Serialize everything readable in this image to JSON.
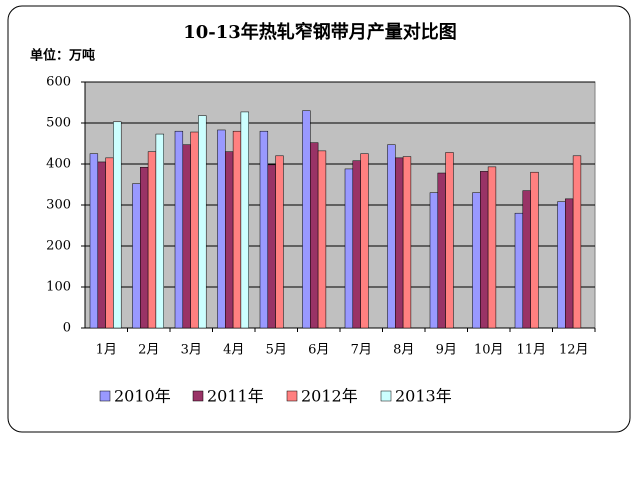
{
  "chart_data": {
    "type": "bar",
    "title": "10-13年热轧窄钢带月产量对比图",
    "unit_label": "单位：万吨",
    "categories": [
      "1月",
      "2月",
      "3月",
      "4月",
      "5月",
      "6月",
      "7月",
      "8月",
      "9月",
      "10月",
      "11月",
      "12月"
    ],
    "series": [
      {
        "name": "2010年",
        "color": "#9999ff",
        "values": [
          425,
          352,
          480,
          483,
          480,
          530,
          388,
          447,
          330,
          330,
          280,
          308
        ]
      },
      {
        "name": "2011年",
        "color": "#993366",
        "values": [
          405,
          392,
          447,
          430,
          398,
          452,
          408,
          415,
          378,
          382,
          335,
          315
        ]
      },
      {
        "name": "2012年",
        "color": "#ff8080",
        "values": [
          415,
          430,
          478,
          480,
          420,
          432,
          425,
          418,
          428,
          393,
          380,
          420
        ]
      },
      {
        "name": "2013年",
        "color": "#ccffff",
        "values": [
          503,
          473,
          518,
          527,
          null,
          null,
          null,
          null,
          null,
          null,
          null,
          null
        ]
      }
    ],
    "ylim": [
      0,
      600
    ],
    "yticks": [
      0,
      100,
      200,
      300,
      400,
      500,
      600
    ],
    "grid": true,
    "legend": "bottom",
    "plot_background": "#c0c0c0"
  }
}
